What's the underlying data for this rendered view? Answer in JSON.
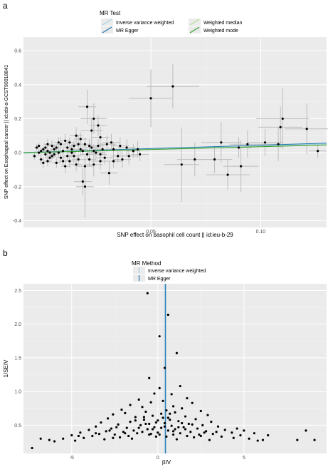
{
  "chart_data": [
    {
      "panel": "a",
      "type": "scatter",
      "xlabel": "SNP effect on basophil cell count || id:ieu-b-29",
      "ylabel": "SNP effect on Esophageal cancer || id:ebi-a-GCST90018841",
      "xlim": [
        -0.008,
        0.13
      ],
      "ylim": [
        -0.44,
        0.68
      ],
      "x_ticks": [
        0.05,
        0.1
      ],
      "x_tick_labels": [
        "0.05",
        "0.10"
      ],
      "y_ticks": [
        -0.4,
        -0.2,
        0.0,
        0.2,
        0.4,
        0.6
      ],
      "y_tick_labels": [
        "-0.4",
        "-0.2",
        "0.0",
        "0.2",
        "0.4",
        "0.6"
      ],
      "grid": true,
      "legend": {
        "title": "MR Test",
        "placement": "top",
        "entries": [
          "Inverse variance weighted",
          "Weighted median",
          "MR Egger",
          "Weighted mode"
        ]
      },
      "lines": [
        {
          "name": "Inverse variance weighted",
          "color": "#a6cee3",
          "slope": 0.39,
          "intercept": 0.0
        },
        {
          "name": "MR Egger",
          "color": "#1f78b4",
          "slope": 0.4,
          "intercept": 0.004
        },
        {
          "name": "Weighted median",
          "color": "#b2df8a",
          "slope": 0.33,
          "intercept": 0.003
        },
        {
          "name": "Weighted mode",
          "color": "#33a02c",
          "slope": 0.33,
          "intercept": 0.002
        }
      ],
      "points": [
        {
          "x": 0.05,
          "y": 0.32,
          "xe": 0.01,
          "ye": 0.17
        },
        {
          "x": 0.06,
          "y": 0.39,
          "xe": 0.012,
          "ye": 0.13
        },
        {
          "x": 0.021,
          "y": 0.27,
          "xe": 0.004,
          "ye": 0.1
        },
        {
          "x": 0.024,
          "y": 0.2,
          "xe": 0.006,
          "ye": 0.09
        },
        {
          "x": 0.023,
          "y": 0.13,
          "xe": 0.005,
          "ye": 0.07
        },
        {
          "x": 0.027,
          "y": 0.09,
          "xe": 0.004,
          "ye": 0.06
        },
        {
          "x": 0.017,
          "y": 0.05,
          "xe": 0.003,
          "ye": 0.05
        },
        {
          "x": 0.02,
          "y": -0.08,
          "xe": 0.004,
          "ye": 0.06
        },
        {
          "x": 0.019,
          "y": -0.17,
          "xe": 0.004,
          "ye": 0.08
        },
        {
          "x": 0.02,
          "y": -0.2,
          "xe": 0.004,
          "ye": 0.18
        },
        {
          "x": 0.024,
          "y": -0.07,
          "xe": 0.004,
          "ye": 0.07
        },
        {
          "x": 0.027,
          "y": -0.05,
          "xe": 0.004,
          "ye": 0.05
        },
        {
          "x": 0.031,
          "y": -0.12,
          "xe": 0.004,
          "ye": 0.07
        },
        {
          "x": 0.037,
          "y": -0.04,
          "xe": 0.004,
          "ye": 0.05
        },
        {
          "x": 0.042,
          "y": 0.01,
          "xe": 0.003,
          "ye": 0.04
        },
        {
          "x": 0.045,
          "y": -0.01,
          "xe": 0.004,
          "ye": 0.04
        },
        {
          "x": 0.064,
          "y": -0.07,
          "xe": 0.008,
          "ye": 0.22
        },
        {
          "x": 0.07,
          "y": -0.04,
          "xe": 0.008,
          "ye": 0.1
        },
        {
          "x": 0.079,
          "y": -0.04,
          "xe": 0.008,
          "ye": 0.08
        },
        {
          "x": 0.085,
          "y": -0.13,
          "xe": 0.01,
          "ye": 0.09
        },
        {
          "x": 0.091,
          "y": -0.08,
          "xe": 0.008,
          "ye": 0.15
        },
        {
          "x": 0.082,
          "y": 0.06,
          "xe": 0.009,
          "ye": 0.12
        },
        {
          "x": 0.09,
          "y": 0.03,
          "xe": 0.006,
          "ye": 0.06
        },
        {
          "x": 0.094,
          "y": 0.05,
          "xe": 0.008,
          "ye": 0.08
        },
        {
          "x": 0.102,
          "y": 0.06,
          "xe": 0.008,
          "ye": 0.08
        },
        {
          "x": 0.108,
          "y": 0.05,
          "xe": 0.008,
          "ye": 0.1
        },
        {
          "x": 0.109,
          "y": 0.15,
          "xe": 0.01,
          "ye": 0.12
        },
        {
          "x": 0.11,
          "y": 0.2,
          "xe": 0.012,
          "ye": 0.18
        },
        {
          "x": 0.121,
          "y": 0.14,
          "xe": 0.01,
          "ye": 0.15
        },
        {
          "x": 0.126,
          "y": 0.01,
          "xe": 0.004,
          "ye": 0.04
        },
        {
          "x": 0.03,
          "y": 0.05,
          "xe": 0.004,
          "ye": 0.05
        },
        {
          "x": 0.033,
          "y": 0.02,
          "xe": 0.004,
          "ye": 0.04
        },
        {
          "x": 0.035,
          "y": -0.02,
          "xe": 0.003,
          "ye": 0.04
        },
        {
          "x": 0.039,
          "y": 0.03,
          "xe": 0.004,
          "ye": 0.05
        },
        {
          "x": 0.026,
          "y": 0.16,
          "xe": 0.004,
          "ye": 0.06
        },
        {
          "x": 0.016,
          "y": 0.1,
          "xe": 0.003,
          "ye": 0.05
        },
        {
          "x": 0.011,
          "y": 0.07,
          "xe": 0.002,
          "ye": 0.04
        },
        {
          "x": 0.009,
          "y": 0.05,
          "xe": 0.002,
          "ye": 0.04
        },
        {
          "x": 0.013,
          "y": -0.05,
          "xe": 0.002,
          "ye": 0.04
        },
        {
          "x": 0.015,
          "y": -0.02,
          "xe": 0.003,
          "ye": 0.04
        },
        {
          "x": 0.018,
          "y": 0.02,
          "xe": 0.003,
          "ye": 0.04
        },
        {
          "x": 0.022,
          "y": 0.04,
          "xe": 0.003,
          "ye": 0.04
        },
        {
          "x": 0.025,
          "y": 0.0,
          "xe": 0.004,
          "ye": 0.04
        },
        {
          "x": 0.028,
          "y": 0.02,
          "xe": 0.004,
          "ye": 0.04
        },
        {
          "x": 0.029,
          "y": -0.03,
          "xe": 0.004,
          "ye": 0.04
        },
        {
          "x": 0.032,
          "y": 0.06,
          "xe": 0.004,
          "ye": 0.05
        },
        {
          "x": 0.006,
          "y": 0.02,
          "xe": 0.002,
          "ye": 0.03
        },
        {
          "x": 0.004,
          "y": -0.03,
          "xe": 0.002,
          "ye": 0.03
        },
        {
          "x": 0.003,
          "y": 0.01,
          "xe": 0.002,
          "ye": 0.03
        },
        {
          "x": 0.002,
          "y": -0.01,
          "xe": 0.001,
          "ye": 0.02
        },
        {
          "x": 0.001,
          "y": 0.02,
          "xe": 0.001,
          "ye": 0.02
        },
        {
          "x": 0.0,
          "y": -0.04,
          "xe": 0.001,
          "ye": 0.03
        },
        {
          "x": -0.001,
          "y": 0.0,
          "xe": 0.001,
          "ye": 0.02
        },
        {
          "x": -0.002,
          "y": 0.03,
          "xe": 0.001,
          "ye": 0.02
        },
        {
          "x": -0.003,
          "y": -0.02,
          "xe": 0.001,
          "ye": 0.02
        },
        {
          "x": 0.005,
          "y": 0.04,
          "xe": 0.002,
          "ye": 0.03
        },
        {
          "x": 0.007,
          "y": -0.06,
          "xe": 0.002,
          "ye": 0.03
        },
        {
          "x": 0.008,
          "y": 0.0,
          "xe": 0.002,
          "ye": 0.03
        },
        {
          "x": 0.01,
          "y": 0.01,
          "xe": 0.002,
          "ye": 0.03
        },
        {
          "x": 0.012,
          "y": 0.03,
          "xe": 0.002,
          "ye": 0.03
        },
        {
          "x": 0.014,
          "y": 0.0,
          "xe": 0.002,
          "ye": 0.03
        },
        {
          "x": 0.016,
          "y": -0.07,
          "xe": 0.003,
          "ye": 0.04
        },
        {
          "x": 0.018,
          "y": 0.08,
          "xe": 0.003,
          "ye": 0.04
        },
        {
          "x": 0.019,
          "y": 0.01,
          "xe": 0.003,
          "ye": 0.03
        },
        {
          "x": 0.021,
          "y": -0.01,
          "xe": 0.003,
          "ye": 0.03
        },
        {
          "x": 0.023,
          "y": 0.03,
          "xe": 0.003,
          "ye": 0.04
        },
        {
          "x": 0.006,
          "y": -0.01,
          "xe": 0.002,
          "ye": 0.02
        },
        {
          "x": 0.003,
          "y": 0.05,
          "xe": 0.002,
          "ye": 0.03
        },
        {
          "x": 0.001,
          "y": -0.06,
          "xe": 0.001,
          "ye": 0.03
        },
        {
          "x": 0.009,
          "y": -0.03,
          "xe": 0.002,
          "ye": 0.03
        },
        {
          "x": 0.011,
          "y": -0.08,
          "xe": 0.002,
          "ye": 0.04
        },
        {
          "x": 0.013,
          "y": 0.06,
          "xe": 0.002,
          "ye": 0.03
        },
        {
          "x": 0.017,
          "y": -0.04,
          "xe": 0.003,
          "ye": 0.03
        },
        {
          "x": 0.02,
          "y": 0.05,
          "xe": 0.003,
          "ye": 0.04
        },
        {
          "x": 0.022,
          "y": -0.04,
          "xe": 0.003,
          "ye": 0.04
        },
        {
          "x": 0.026,
          "y": 0.04,
          "xe": 0.003,
          "ye": 0.04
        },
        {
          "x": 0.004,
          "y": 0.0,
          "xe": 0.002,
          "ye": 0.02
        },
        {
          "x": 0.002,
          "y": 0.03,
          "xe": 0.001,
          "ye": 0.02
        },
        {
          "x": 0.007,
          "y": 0.03,
          "xe": 0.002,
          "ye": 0.02
        },
        {
          "x": 0.01,
          "y": -0.05,
          "xe": 0.002,
          "ye": 0.03
        },
        {
          "x": 0.015,
          "y": 0.04,
          "xe": 0.002,
          "ye": 0.03
        },
        {
          "x": 0.005,
          "y": -0.02,
          "xe": 0.002,
          "ye": 0.02
        },
        {
          "x": -0.001,
          "y": 0.04,
          "xe": 0.001,
          "ye": 0.02
        },
        {
          "x": 0.0,
          "y": 0.01,
          "xe": 0.001,
          "ye": 0.02
        },
        {
          "x": 0.008,
          "y": 0.06,
          "xe": 0.002,
          "ye": 0.03
        },
        {
          "x": 0.012,
          "y": -0.02,
          "xe": 0.002,
          "ye": 0.03
        },
        {
          "x": 0.014,
          "y": 0.02,
          "xe": 0.002,
          "ye": 0.03
        },
        {
          "x": 0.003,
          "y": -0.05,
          "xe": 0.002,
          "ye": 0.03
        },
        {
          "x": 0.024,
          "y": 0.01,
          "xe": 0.003,
          "ye": 0.04
        },
        {
          "x": 0.027,
          "y": -0.01,
          "xe": 0.003,
          "ye": 0.04
        },
        {
          "x": 0.033,
          "y": -0.05,
          "xe": 0.004,
          "ye": 0.04
        },
        {
          "x": 0.036,
          "y": 0.04,
          "xe": 0.004,
          "ye": 0.05
        },
        {
          "x": 0.04,
          "y": -0.02,
          "xe": 0.004,
          "ye": 0.05
        },
        {
          "x": 0.044,
          "y": 0.02,
          "xe": 0.004,
          "ye": 0.05
        }
      ]
    },
    {
      "panel": "b",
      "type": "scatter",
      "xlabel": "βIV",
      "ylabel": "1/SEIV",
      "xlim": [
        -7.8,
        9.8
      ],
      "ylim": [
        0.08,
        2.6
      ],
      "x_ticks": [
        -5,
        0,
        5
      ],
      "x_tick_labels": [
        "-5",
        "0",
        "5"
      ],
      "y_ticks": [
        0.5,
        1.0,
        1.5,
        2.0,
        2.5
      ],
      "y_tick_labels": [
        "0.5",
        "1.0",
        "1.5",
        "2.0",
        "2.5"
      ],
      "grid": true,
      "legend": {
        "title": "MR Method",
        "placement": "top",
        "entries": [
          "Inverse variance weighted",
          "MR Egger"
        ]
      },
      "lines": [
        {
          "name": "Inverse variance weighted",
          "color": "#a6cee3",
          "x": 0.39
        },
        {
          "name": "MR Egger",
          "color": "#1f78b4",
          "x": 0.45
        }
      ],
      "points": [
        [
          -0.6,
          2.46
        ],
        [
          0.6,
          2.14
        ],
        [
          0.1,
          1.82
        ],
        [
          1.1,
          1.57
        ],
        [
          0.4,
          1.35
        ],
        [
          -0.5,
          1.2
        ],
        [
          1.3,
          1.08
        ],
        [
          0.1,
          1.05
        ],
        [
          -0.2,
          0.97
        ],
        [
          0.8,
          0.96
        ],
        [
          1.7,
          0.9
        ],
        [
          -1.1,
          0.88
        ],
        [
          0.3,
          0.86
        ],
        [
          -0.4,
          0.84
        ],
        [
          2.0,
          0.83
        ],
        [
          -1.6,
          0.8
        ],
        [
          0.9,
          0.78
        ],
        [
          -0.9,
          0.77
        ],
        [
          1.4,
          0.75
        ],
        [
          -2.1,
          0.73
        ],
        [
          0.5,
          0.72
        ],
        [
          2.5,
          0.71
        ],
        [
          -0.7,
          0.7
        ],
        [
          1.0,
          0.69
        ],
        [
          -1.9,
          0.68
        ],
        [
          0.2,
          0.67
        ],
        [
          -2.6,
          0.66
        ],
        [
          2.9,
          0.65
        ],
        [
          -0.3,
          0.64
        ],
        [
          1.6,
          0.63
        ],
        [
          -1.3,
          0.62
        ],
        [
          0.6,
          0.61
        ],
        [
          -2.9,
          0.6
        ],
        [
          2.2,
          0.59
        ],
        [
          -0.8,
          0.58
        ],
        [
          0.0,
          0.57
        ],
        [
          1.2,
          0.56
        ],
        [
          -1.6,
          0.55
        ],
        [
          3.1,
          0.55
        ],
        [
          -3.3,
          0.54
        ],
        [
          0.4,
          0.53
        ],
        [
          -0.5,
          0.52
        ],
        [
          1.8,
          0.52
        ],
        [
          -2.3,
          0.51
        ],
        [
          2.6,
          0.5
        ],
        [
          -1.0,
          0.5
        ],
        [
          0.8,
          0.49
        ],
        [
          -3.6,
          0.48
        ],
        [
          3.5,
          0.48
        ],
        [
          -0.2,
          0.47
        ],
        [
          1.5,
          0.47
        ],
        [
          -1.8,
          0.46
        ],
        [
          0.2,
          0.46
        ],
        [
          -2.7,
          0.45
        ],
        [
          2.3,
          0.45
        ],
        [
          -0.6,
          0.44
        ],
        [
          1.0,
          0.44
        ],
        [
          -4.0,
          0.43
        ],
        [
          3.9,
          0.43
        ],
        [
          -1.4,
          0.42
        ],
        [
          0.6,
          0.42
        ],
        [
          -3.0,
          0.41
        ],
        [
          2.8,
          0.41
        ],
        [
          -0.9,
          0.4
        ],
        [
          1.9,
          0.4
        ],
        [
          -2.0,
          0.4
        ],
        [
          0.0,
          0.39
        ],
        [
          -4.5,
          0.39
        ],
        [
          4.3,
          0.39
        ],
        [
          -1.2,
          0.38
        ],
        [
          1.3,
          0.38
        ],
        [
          -3.4,
          0.37
        ],
        [
          3.2,
          0.37
        ],
        [
          -0.4,
          0.37
        ],
        [
          0.9,
          0.36
        ],
        [
          -2.5,
          0.36
        ],
        [
          2.4,
          0.36
        ],
        [
          -5.0,
          0.35
        ],
        [
          4.8,
          0.35
        ],
        [
          -1.7,
          0.34
        ],
        [
          1.7,
          0.34
        ],
        [
          -3.8,
          0.34
        ],
        [
          3.7,
          0.33
        ],
        [
          -0.1,
          0.33
        ],
        [
          0.5,
          0.33
        ],
        [
          -2.2,
          0.32
        ],
        [
          2.1,
          0.32
        ],
        [
          -4.3,
          0.31
        ],
        [
          4.4,
          0.31
        ],
        [
          -5.5,
          0.3
        ],
        [
          5.3,
          0.3
        ],
        [
          -1.5,
          0.3
        ],
        [
          1.1,
          0.29
        ],
        [
          -3.1,
          0.29
        ],
        [
          3.0,
          0.28
        ],
        [
          -6.3,
          0.28
        ],
        [
          6.1,
          0.28
        ],
        [
          -4.8,
          0.27
        ],
        [
          5.8,
          0.27
        ],
        [
          -0.7,
          0.52
        ],
        [
          0.3,
          0.61
        ],
        [
          0.7,
          0.58
        ],
        [
          -0.3,
          0.44
        ],
        [
          1.4,
          0.53
        ],
        [
          -1.1,
          0.46
        ],
        [
          0.1,
          0.36
        ],
        [
          0.9,
          0.41
        ],
        [
          -0.5,
          0.36
        ],
        [
          1.6,
          0.44
        ],
        [
          -1.9,
          0.38
        ],
        [
          2.7,
          0.39
        ],
        [
          -2.8,
          0.42
        ],
        [
          0.4,
          0.48
        ],
        [
          -0.1,
          0.54
        ],
        [
          1.2,
          0.47
        ],
        [
          -0.8,
          0.62
        ],
        [
          0.7,
          0.67
        ],
        [
          -1.3,
          0.57
        ],
        [
          2.0,
          0.51
        ],
        [
          -2.4,
          0.47
        ],
        [
          5.0,
          0.42
        ],
        [
          5.6,
          0.38
        ],
        [
          6.4,
          0.35
        ],
        [
          -6.8,
          0.3
        ],
        [
          -7.3,
          0.16
        ],
        [
          8.1,
          0.28
        ],
        [
          8.6,
          0.42
        ],
        [
          9.1,
          0.28
        ],
        [
          -6.0,
          0.26
        ],
        [
          4.6,
          0.45
        ],
        [
          -4.6,
          0.34
        ],
        [
          3.4,
          0.4
        ],
        [
          -3.6,
          0.38
        ],
        [
          2.5,
          0.34
        ],
        [
          -2.6,
          0.31
        ]
      ]
    }
  ]
}
